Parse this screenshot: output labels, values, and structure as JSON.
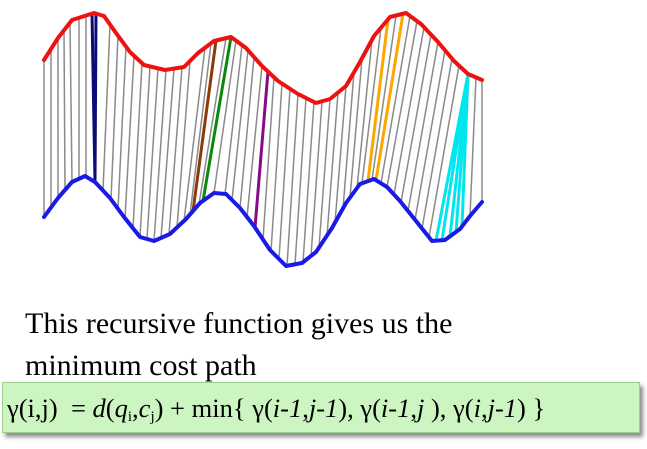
{
  "diagram": {
    "upper_curve_color": "#ee1111",
    "lower_curve_color": "#1a1ae6",
    "connector_color": "#8a8a8a",
    "highlight_colors": [
      "#0b0b7a",
      "#8b3a0a",
      "#0a8a0a",
      "#880a88",
      "#ffa500",
      "#00e6ee"
    ]
  },
  "caption": {
    "line1": "This recursive function gives us the",
    "line2": "minimum cost path"
  },
  "formula": {
    "lhs": "γ(i,j)",
    "equals": "=",
    "d": "d",
    "q": "q",
    "q_sub": "i",
    "c": "c",
    "c_sub": "j",
    "min": "min{",
    "gamma": "γ",
    "i_m1": "i-1",
    "j_m1": "j-1",
    "i": "i",
    "j": "j",
    "close": "}"
  }
}
